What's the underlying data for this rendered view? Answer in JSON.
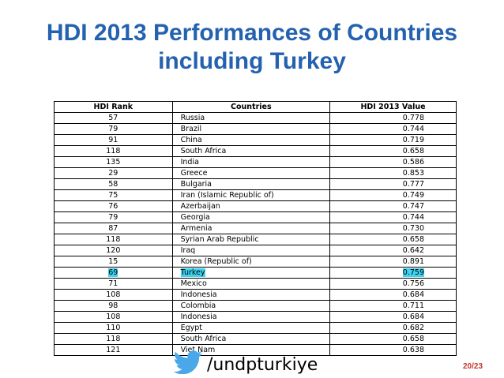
{
  "header": {
    "title": [
      "HDI 2013 Performances of Countries",
      "including Turkey"
    ]
  },
  "table": {
    "columns": [
      "HDI Rank",
      "Countries",
      "HDI 2013 Value"
    ],
    "rows": [
      [
        "57",
        "Russia",
        "0.778"
      ],
      [
        "79",
        "Brazil",
        "0.744"
      ],
      [
        "91",
        "China",
        "0.719"
      ],
      [
        "118",
        "South Africa",
        "0.658"
      ],
      [
        "135",
        "India",
        "0.586"
      ],
      [
        "29",
        "Greece",
        "0.853"
      ],
      [
        "58",
        "Bulgaria",
        "0.777"
      ],
      [
        "75",
        "Iran (Islamic Republic of)",
        "0.749"
      ],
      [
        "76",
        "Azerbaijan",
        "0.747"
      ],
      [
        "79",
        "Georgia",
        "0.744"
      ],
      [
        "87",
        "Armenia",
        "0.730"
      ],
      [
        "118",
        "Syrian Arab Republic",
        "0.658"
      ],
      [
        "120",
        "Iraq",
        "0.642"
      ],
      [
        "15",
        "Korea (Republic of)",
        "0.891"
      ],
      [
        "69",
        "Turkey",
        "0.759"
      ],
      [
        "71",
        "Mexico",
        "0.756"
      ],
      [
        "108",
        "Indonesia",
        "0.684"
      ],
      [
        "98",
        "Colombia",
        "0.711"
      ],
      [
        "108",
        "Indonesia",
        "0.684"
      ],
      [
        "110",
        "Egypt",
        "0.682"
      ],
      [
        "118",
        "South Africa",
        "0.658"
      ],
      [
        "121",
        "Viet Nam",
        "0.638"
      ]
    ],
    "highlighted_rows": [
      14
    ]
  },
  "footer": {
    "handle": "/undpturkiye",
    "page": "20/23"
  }
}
